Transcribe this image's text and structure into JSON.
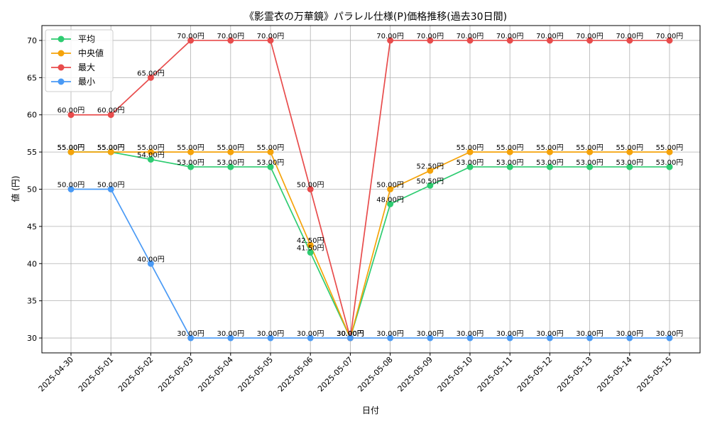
{
  "chart_data": {
    "type": "line",
    "title": "《影霊衣の万華鏡》パラレル仕様(P)価格推移(過去30日間)",
    "xlabel": "日付",
    "ylabel": "値 (円)",
    "ylim": [
      28,
      72
    ],
    "yticks": [
      30,
      35,
      40,
      45,
      50,
      55,
      60,
      65,
      70
    ],
    "grid": true,
    "legend_position": "top-left",
    "value_suffix": "円",
    "categories": [
      "2025-04-30",
      "2025-05-01",
      "2025-05-02",
      "2025-05-03",
      "2025-05-04",
      "2025-05-05",
      "2025-05-06",
      "2025-05-07",
      "2025-05-08",
      "2025-05-09",
      "2025-05-10",
      "2025-05-11",
      "2025-05-12",
      "2025-05-13",
      "2025-05-14",
      "2025-05-15"
    ],
    "series": [
      {
        "name": "平均",
        "color": "#2ecc71",
        "values": [
          55,
          55,
          54,
          53,
          53,
          53,
          41.5,
          30,
          48,
          50.5,
          53,
          53,
          53,
          53,
          53,
          53
        ]
      },
      {
        "name": "中央値",
        "color": "#f5a30a",
        "values": [
          55,
          55,
          55,
          55,
          55,
          55,
          42.5,
          30,
          50,
          52.5,
          55,
          55,
          55,
          55,
          55,
          55
        ]
      },
      {
        "name": "最大",
        "color": "#e84c4c",
        "values": [
          60,
          60,
          65,
          70,
          70,
          70,
          50,
          30,
          70,
          70,
          70,
          70,
          70,
          70,
          70,
          70
        ]
      },
      {
        "name": "最小",
        "color": "#4a9af5",
        "values": [
          50,
          50,
          40,
          30,
          30,
          30,
          30,
          30,
          30,
          30,
          30,
          30,
          30,
          30,
          30,
          30
        ]
      }
    ]
  }
}
